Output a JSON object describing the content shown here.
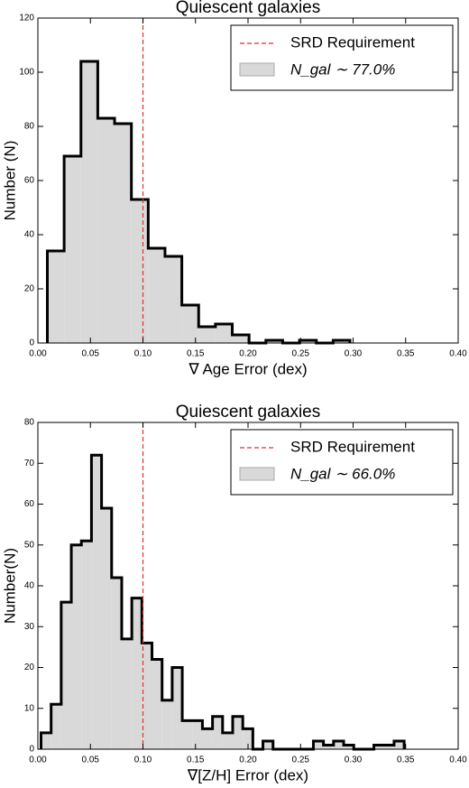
{
  "chart_data": [
    {
      "type": "histogram",
      "title": "Quiescent galaxies",
      "x_label": "∇ Age Error (dex)",
      "y_label": "Number (N)",
      "bins": [
        0.009,
        0.025,
        0.041,
        0.057,
        0.073,
        0.089,
        0.105,
        0.121,
        0.137,
        0.153,
        0.169,
        0.185,
        0.201,
        0.217,
        0.233,
        0.249,
        0.265,
        0.281,
        0.297
      ],
      "series": [
        {
          "name": "N_gal ∼ 77.0%",
          "color": "#d9d9d9",
          "values": [
            34,
            69,
            104,
            83,
            81,
            53,
            35,
            32,
            14,
            6,
            7,
            3,
            0,
            1,
            0,
            1,
            0,
            1
          ]
        }
      ],
      "vline": {
        "name": "SRD Requirement",
        "x": 0.1,
        "color": "#e0302a"
      },
      "xlim": [
        0,
        0.4
      ],
      "ylim": [
        0,
        120
      ],
      "xticks": [
        {
          "value": 0,
          "label": "0.00"
        },
        {
          "value": 0.05,
          "label": "0.05"
        },
        {
          "value": 0.1,
          "label": "0.10"
        },
        {
          "value": 0.15,
          "label": "0.15"
        },
        {
          "value": 0.2,
          "label": "0.20"
        },
        {
          "value": 0.25,
          "label": "0.25"
        },
        {
          "value": 0.3,
          "label": "0.30"
        },
        {
          "value": 0.35,
          "label": "0.35"
        },
        {
          "value": 0.4,
          "label": "0.40"
        }
      ],
      "yticks": [
        0,
        20,
        40,
        60,
        80,
        100,
        120
      ],
      "legend": "upper right"
    },
    {
      "type": "histogram",
      "title": "Quiescent galaxies",
      "x_label": "∇[Z/H] Error (dex)",
      "y_label": "Number(N)",
      "bins": [
        0.003,
        0.0126,
        0.0222,
        0.0318,
        0.0414,
        0.051,
        0.0606,
        0.0702,
        0.0798,
        0.0894,
        0.099,
        0.1086,
        0.1182,
        0.1278,
        0.1374,
        0.147,
        0.1566,
        0.1662,
        0.1758,
        0.1854,
        0.195,
        0.2046,
        0.2142,
        0.2238,
        0.2334,
        0.243,
        0.2526,
        0.2622,
        0.2718,
        0.2814,
        0.291,
        0.3006,
        0.3102,
        0.3198,
        0.3294,
        0.339,
        0.3486
      ],
      "series": [
        {
          "name": "N_gal ∼ 66.0%",
          "color": "#d9d9d9",
          "values": [
            4,
            11,
            36,
            50,
            51,
            72,
            59,
            42,
            27,
            37,
            26,
            22,
            12,
            20,
            7,
            7,
            5,
            8,
            4,
            8,
            5,
            0,
            2,
            0,
            0,
            0,
            0,
            2,
            1,
            2,
            1,
            0,
            0,
            1,
            1,
            2
          ]
        }
      ],
      "vline": {
        "name": "SRD Requirement",
        "x": 0.1,
        "color": "#e0302a"
      },
      "xlim": [
        0,
        0.4
      ],
      "ylim": [
        0,
        80
      ],
      "xticks": [
        {
          "value": 0,
          "label": "0.00"
        },
        {
          "value": 0.05,
          "label": "0.05"
        },
        {
          "value": 0.1,
          "label": "0.10"
        },
        {
          "value": 0.15,
          "label": "0.15"
        },
        {
          "value": 0.2,
          "label": "0.20"
        },
        {
          "value": 0.25,
          "label": "0.25"
        },
        {
          "value": 0.3,
          "label": "0.30"
        },
        {
          "value": 0.35,
          "label": "0.35"
        },
        {
          "value": 0.4,
          "label": "0.40"
        }
      ],
      "yticks": [
        0,
        10,
        20,
        30,
        40,
        50,
        60,
        70,
        80
      ],
      "legend": "upper right"
    }
  ]
}
